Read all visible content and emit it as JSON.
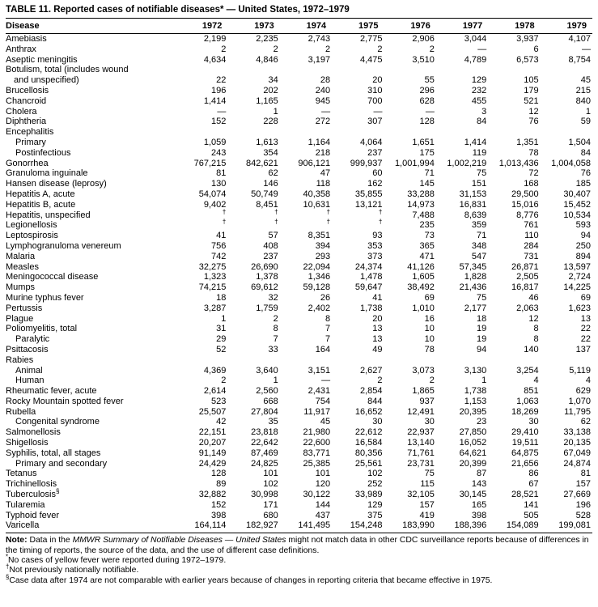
{
  "title": "TABLE 11. Reported cases of notifiable diseases* — United States, 1972–1979",
  "table": {
    "columns": [
      "Disease",
      "1972",
      "1973",
      "1974",
      "1975",
      "1976",
      "1977",
      "1978",
      "1979"
    ],
    "rows": [
      {
        "disease": "Amebiasis",
        "values": [
          "2,199",
          "2,235",
          "2,743",
          "2,775",
          "2,906",
          "3,044",
          "3,937",
          "4,107"
        ]
      },
      {
        "disease": "Anthrax",
        "values": [
          "2",
          "2",
          "2",
          "2",
          "2",
          "—",
          "6",
          "—"
        ]
      },
      {
        "disease": "Aseptic meningitis",
        "values": [
          "4,634",
          "4,846",
          "3,197",
          "4,475",
          "3,510",
          "4,789",
          "6,573",
          "8,754"
        ]
      },
      {
        "disease": "Botulism, total (includes wound",
        "line2": "and unspecified)",
        "values": [
          "22",
          "34",
          "28",
          "20",
          "55",
          "129",
          "105",
          "45"
        ]
      },
      {
        "disease": "Brucellosis",
        "values": [
          "196",
          "202",
          "240",
          "310",
          "296",
          "232",
          "179",
          "215"
        ]
      },
      {
        "disease": "Chancroid",
        "values": [
          "1,414",
          "1,165",
          "945",
          "700",
          "628",
          "455",
          "521",
          "840"
        ]
      },
      {
        "disease": "Cholera",
        "values": [
          "—",
          "1",
          "—",
          "—",
          "—",
          "3",
          "12",
          "1"
        ]
      },
      {
        "disease": "Diphtheria",
        "values": [
          "152",
          "228",
          "272",
          "307",
          "128",
          "84",
          "76",
          "59"
        ]
      },
      {
        "disease": "Encephalitis",
        "values": []
      },
      {
        "disease": "Primary",
        "indent": 1,
        "values": [
          "1,059",
          "1,613",
          "1,164",
          "4,064",
          "1,651",
          "1,414",
          "1,351",
          "1,504"
        ]
      },
      {
        "disease": "Postinfectious",
        "indent": 1,
        "values": [
          "243",
          "354",
          "218",
          "237",
          "175",
          "119",
          "78",
          "84"
        ]
      },
      {
        "disease": "Gonorrhea",
        "values": [
          "767,215",
          "842,621",
          "906,121",
          "999,937",
          "1,001,994",
          "1,002,219",
          "1,013,436",
          "1,004,058"
        ]
      },
      {
        "disease": "Granuloma inguinale",
        "values": [
          "81",
          "62",
          "47",
          "60",
          "71",
          "75",
          "72",
          "76"
        ]
      },
      {
        "disease": "Hansen disease (leprosy)",
        "values": [
          "130",
          "146",
          "118",
          "162",
          "145",
          "151",
          "168",
          "185"
        ]
      },
      {
        "disease": "Hepatitis A, acute",
        "values": [
          "54,074",
          "50,749",
          "40,358",
          "35,855",
          "33,288",
          "31,153",
          "29,500",
          "30,407"
        ]
      },
      {
        "disease": "Hepatitis B, acute",
        "values": [
          "9,402",
          "8,451",
          "10,631",
          "13,121",
          "14,973",
          "16,831",
          "15,016",
          "15,452"
        ]
      },
      {
        "disease": "Hepatitis, unspecified",
        "values": [
          "†",
          "†",
          "†",
          "†",
          "7,488",
          "8,639",
          "8,776",
          "10,534"
        ]
      },
      {
        "disease": "Legionellosis",
        "values": [
          "†",
          "†",
          "†",
          "†",
          "235",
          "359",
          "761",
          "593"
        ]
      },
      {
        "disease": "Leptospirosis",
        "values": [
          "41",
          "57",
          "8,351",
          "93",
          "73",
          "71",
          "110",
          "94"
        ]
      },
      {
        "disease": "Lymphogranuloma venereum",
        "values": [
          "756",
          "408",
          "394",
          "353",
          "365",
          "348",
          "284",
          "250"
        ]
      },
      {
        "disease": "Malaria",
        "values": [
          "742",
          "237",
          "293",
          "373",
          "471",
          "547",
          "731",
          "894"
        ]
      },
      {
        "disease": "Measles",
        "values": [
          "32,275",
          "26,690",
          "22,094",
          "24,374",
          "41,126",
          "57,345",
          "26,871",
          "13,597"
        ]
      },
      {
        "disease": "Meningococcal disease",
        "values": [
          "1,323",
          "1,378",
          "1,346",
          "1,478",
          "1,605",
          "1,828",
          "2,505",
          "2,724"
        ]
      },
      {
        "disease": "Mumps",
        "values": [
          "74,215",
          "69,612",
          "59,128",
          "59,647",
          "38,492",
          "21,436",
          "16,817",
          "14,225"
        ]
      },
      {
        "disease": "Murine typhus fever",
        "values": [
          "18",
          "32",
          "26",
          "41",
          "69",
          "75",
          "46",
          "69"
        ]
      },
      {
        "disease": "Pertussis",
        "values": [
          "3,287",
          "1,759",
          "2,402",
          "1,738",
          "1,010",
          "2,177",
          "2,063",
          "1,623"
        ]
      },
      {
        "disease": "Plague",
        "values": [
          "1",
          "2",
          "8",
          "20",
          "16",
          "18",
          "12",
          "13"
        ]
      },
      {
        "disease": "Poliomyelitis, total",
        "values": [
          "31",
          "8",
          "7",
          "13",
          "10",
          "19",
          "8",
          "22"
        ]
      },
      {
        "disease": "Paralytic",
        "indent": 1,
        "values": [
          "29",
          "7",
          "7",
          "13",
          "10",
          "19",
          "8",
          "22"
        ]
      },
      {
        "disease": "Psittacosis",
        "values": [
          "52",
          "33",
          "164",
          "49",
          "78",
          "94",
          "140",
          "137"
        ]
      },
      {
        "disease": "Rabies",
        "values": []
      },
      {
        "disease": "Animal",
        "indent": 1,
        "values": [
          "4,369",
          "3,640",
          "3,151",
          "2,627",
          "3,073",
          "3,130",
          "3,254",
          "5,119"
        ]
      },
      {
        "disease": "Human",
        "indent": 1,
        "values": [
          "2",
          "1",
          "—",
          "2",
          "2",
          "1",
          "4",
          "4"
        ]
      },
      {
        "disease": "Rheumatic fever, acute",
        "values": [
          "2,614",
          "2,560",
          "2,431",
          "2,854",
          "1,865",
          "1,738",
          "851",
          "629"
        ]
      },
      {
        "disease": "Rocky Mountain spotted fever",
        "values": [
          "523",
          "668",
          "754",
          "844",
          "937",
          "1,153",
          "1,063",
          "1,070"
        ]
      },
      {
        "disease": "Rubella",
        "values": [
          "25,507",
          "27,804",
          "11,917",
          "16,652",
          "12,491",
          "20,395",
          "18,269",
          "11,795"
        ]
      },
      {
        "disease": "Congenital syndrome",
        "indent": 1,
        "values": [
          "42",
          "35",
          "45",
          "30",
          "30",
          "23",
          "30",
          "62"
        ]
      },
      {
        "disease": "Salmonellosis",
        "values": [
          "22,151",
          "23,818",
          "21,980",
          "22,612",
          "22,937",
          "27,850",
          "29,410",
          "33,138"
        ]
      },
      {
        "disease": "Shigellosis",
        "values": [
          "20,207",
          "22,642",
          "22,600",
          "16,584",
          "13,140",
          "16,052",
          "19,511",
          "20,135"
        ]
      },
      {
        "disease": "Syphilis, total, all stages",
        "values": [
          "91,149",
          "87,469",
          "83,771",
          "80,356",
          "71,761",
          "64,621",
          "64,875",
          "67,049"
        ]
      },
      {
        "disease": "Primary and secondary",
        "indent": 1,
        "values": [
          "24,429",
          "24,825",
          "25,385",
          "25,561",
          "23,731",
          "20,399",
          "21,656",
          "24,874"
        ]
      },
      {
        "disease": "Tetanus",
        "values": [
          "128",
          "101",
          "101",
          "102",
          "75",
          "87",
          "86",
          "81"
        ]
      },
      {
        "disease": "Trichinellosis",
        "values": [
          "89",
          "102",
          "120",
          "252",
          "115",
          "143",
          "67",
          "157"
        ]
      },
      {
        "disease": "Tuberculosis",
        "sup": "§",
        "values": [
          "32,882",
          "30,998",
          "30,122",
          "33,989",
          "32,105",
          "30,145",
          "28,521",
          "27,669"
        ]
      },
      {
        "disease": "Tularemia",
        "values": [
          "152",
          "171",
          "144",
          "129",
          "157",
          "165",
          "141",
          "196"
        ]
      },
      {
        "disease": "Typhoid fever",
        "values": [
          "398",
          "680",
          "437",
          "375",
          "419",
          "398",
          "505",
          "528"
        ]
      },
      {
        "disease": "Varicella",
        "values": [
          "164,114",
          "182,927",
          "141,495",
          "154,248",
          "183,990",
          "188,396",
          "154,089",
          "199,081"
        ]
      }
    ]
  },
  "note": {
    "prefix": "Note:",
    "before_italic": " Data in the ",
    "italic": "MMWR Summary of Notifiable Diseases — United States",
    "after": " might not match data in other CDC surveillance reports because of differences in the timing of reports, the source of the data, and the use of different case definitions."
  },
  "footnote_items": [
    {
      "marker": "*",
      "text": "No cases of yellow fever were reported during 1972–1979."
    },
    {
      "marker": "†",
      "text": "Not previously nationally notifiable."
    },
    {
      "marker": "§",
      "text": "Case data after 1974 are not comparable with earlier years because of changes in reporting criteria that became effective in 1975."
    }
  ]
}
